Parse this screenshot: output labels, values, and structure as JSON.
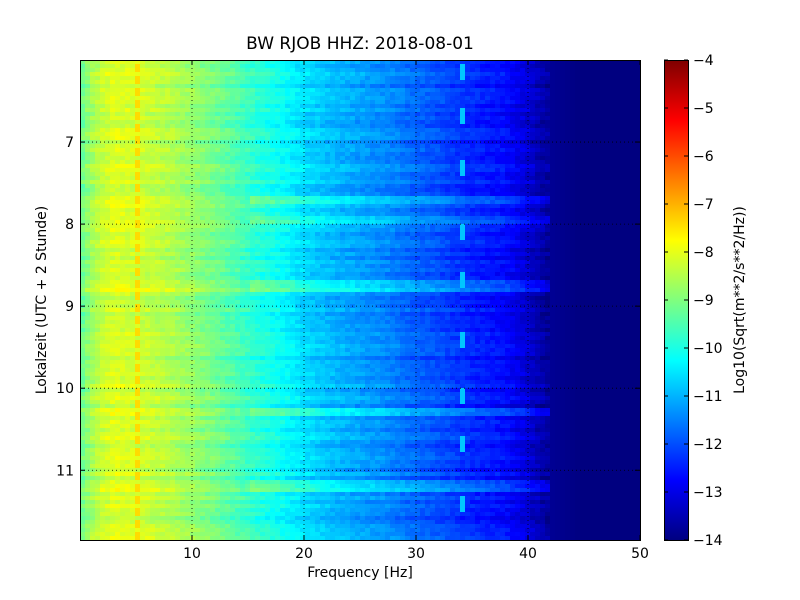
{
  "chart_data": {
    "type": "heatmap",
    "title": "BW RJOB HHZ: 2018-08-01",
    "xlabel": "Frequency [Hz]",
    "ylabel": "Lokalzeit (UTC + 2 Stunde)",
    "colorbar_label": "Log10(Sqrt(m**2/s**2/Hz))",
    "colormap": "jet",
    "xlim": [
      0,
      50
    ],
    "ylim": [
      6.0,
      11.85
    ],
    "y_inverted": true,
    "clim": [
      -14,
      -4
    ],
    "grid": true,
    "x_ticks": [
      10,
      20,
      30,
      40,
      50
    ],
    "x_tick_labels": [
      "10",
      "20",
      "30",
      "40",
      "50"
    ],
    "y_ticks": [
      7,
      8,
      9,
      10,
      11
    ],
    "y_tick_labels": [
      "7",
      "8",
      "9",
      "10",
      "11"
    ],
    "colorbar_ticks": [
      -4,
      -5,
      -6,
      -7,
      -8,
      -9,
      -10,
      -11,
      -12,
      -13,
      -14
    ],
    "colorbar_tick_labels": [
      "−4",
      "−5",
      "−6",
      "−7",
      "−8",
      "−9",
      "−10",
      "−11",
      "−12",
      "−13",
      "−14"
    ],
    "frequency_profile": {
      "frequency_hz": [
        0,
        1,
        2,
        3,
        5,
        8,
        10,
        13,
        16,
        18,
        20,
        23,
        26,
        28,
        30,
        32,
        34,
        36,
        38,
        40,
        42,
        45,
        50
      ],
      "log10_amplitude": [
        -9.3,
        -8.7,
        -8.3,
        -8.1,
        -8.2,
        -8.5,
        -8.8,
        -9.3,
        -9.9,
        -10.2,
        -10.6,
        -11.0,
        -11.3,
        -11.5,
        -11.8,
        -12.0,
        -12.3,
        -12.5,
        -12.7,
        -13.2,
        -13.8,
        -14.0,
        -14.0
      ]
    },
    "features": {
      "narrowband_line_hz": 5.0,
      "narrowband_line_level": -7.4,
      "transient_line_hz": 34.2,
      "transient_line_level": -10.8,
      "transient_times_h": [
        6.05,
        6.6,
        7.2,
        8.0,
        8.6,
        9.3,
        10.0,
        10.6,
        11.3
      ],
      "broadband_noise_times_h": [
        7.7,
        7.95,
        8.75,
        10.3,
        11.2
      ]
    }
  }
}
